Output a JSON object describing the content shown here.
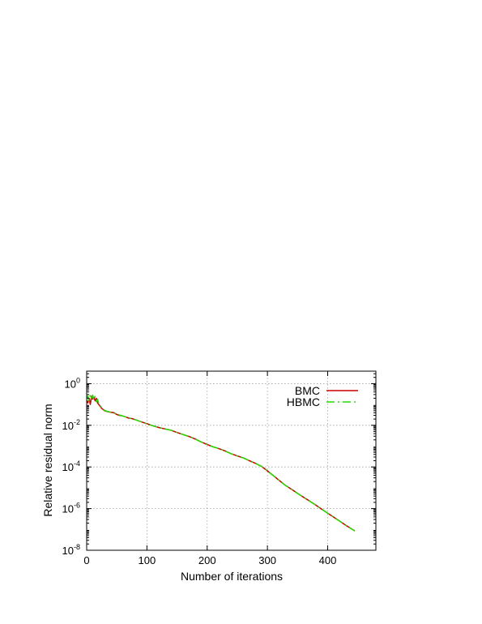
{
  "chart_data": {
    "type": "line",
    "title": "",
    "xlabel": "Number of iterations",
    "ylabel": "Relative residual norm",
    "xlim": [
      0,
      480
    ],
    "ylim_exponent": [
      -8,
      0.6
    ],
    "y_scale": "log",
    "grid": true,
    "legend_position": "top-right",
    "x_ticks": [
      "0",
      "100",
      "200",
      "300",
      "400"
    ],
    "x_tick_values": [
      0,
      100,
      200,
      300,
      400
    ],
    "y_ticks": [
      {
        "base": "10",
        "exp": "0",
        "value": 1
      },
      {
        "base": "10",
        "exp": "-2",
        "value": 0.01
      },
      {
        "base": "10",
        "exp": "-4",
        "value": 0.0001
      },
      {
        "base": "10",
        "exp": "-6",
        "value": 1e-06
      },
      {
        "base": "10",
        "exp": "-8",
        "value": 1e-08
      }
    ],
    "series": [
      {
        "name": "BMC",
        "color": "#cc0000",
        "dash": "solid",
        "x": [
          0,
          2,
          4,
          6,
          8,
          10,
          12,
          14,
          16,
          18,
          20,
          25,
          30,
          35,
          40,
          45,
          50,
          55,
          60,
          65,
          70,
          75,
          80,
          90,
          100,
          110,
          120,
          130,
          140,
          150,
          160,
          170,
          180,
          190,
          200,
          210,
          220,
          230,
          240,
          250,
          260,
          270,
          280,
          290,
          300,
          310,
          320,
          330,
          340,
          350,
          360,
          370,
          380,
          390,
          400,
          410,
          420,
          430,
          440,
          445
        ],
        "y": [
          0.15,
          0.12,
          0.2,
          0.1,
          0.25,
          0.18,
          0.22,
          0.15,
          0.2,
          0.12,
          0.1,
          0.065,
          0.05,
          0.045,
          0.042,
          0.04,
          0.033,
          0.03,
          0.028,
          0.025,
          0.022,
          0.021,
          0.019,
          0.015,
          0.012,
          0.0095,
          0.0078,
          0.0067,
          0.0058,
          0.0045,
          0.0036,
          0.0029,
          0.0022,
          0.0016,
          0.0012,
          0.00092,
          0.00075,
          0.00058,
          0.00043,
          0.00034,
          0.00027,
          0.0002,
          0.00015,
          0.000108,
          6.5e-05,
          3.8e-05,
          2.2e-05,
          1.3e-05,
          8.5e-06,
          5.4e-06,
          3.5e-06,
          2.3e-06,
          1.5e-06,
          9.5e-07,
          6e-07,
          3.9e-07,
          2.5e-07,
          1.6e-07,
          1.05e-07,
          8.5e-08
        ]
      },
      {
        "name": "HBMC",
        "color": "#22dd00",
        "dash": "dash-dot",
        "x": [
          0,
          2,
          4,
          6,
          8,
          10,
          12,
          14,
          16,
          18,
          20,
          25,
          30,
          35,
          40,
          45,
          50,
          55,
          60,
          65,
          70,
          75,
          80,
          90,
          100,
          110,
          120,
          130,
          140,
          150,
          160,
          170,
          180,
          190,
          200,
          210,
          220,
          230,
          240,
          250,
          260,
          270,
          280,
          290,
          300,
          310,
          320,
          330,
          340,
          350,
          360,
          370,
          380,
          390,
          400,
          410,
          420,
          430,
          440,
          445
        ],
        "y": [
          0.2,
          0.25,
          0.15,
          0.3,
          0.2,
          0.28,
          0.17,
          0.24,
          0.14,
          0.18,
          0.11,
          0.07,
          0.052,
          0.046,
          0.043,
          0.041,
          0.034,
          0.031,
          0.028,
          0.025,
          0.022,
          0.021,
          0.019,
          0.015,
          0.012,
          0.0095,
          0.0078,
          0.0067,
          0.0058,
          0.0045,
          0.0036,
          0.0029,
          0.0022,
          0.0016,
          0.0012,
          0.00092,
          0.00075,
          0.00058,
          0.00043,
          0.00034,
          0.00027,
          0.0002,
          0.00015,
          0.000108,
          6.5e-05,
          3.8e-05,
          2.2e-05,
          1.3e-05,
          8.5e-06,
          5.4e-06,
          3.5e-06,
          2.3e-06,
          1.5e-06,
          9.5e-07,
          6e-07,
          3.9e-07,
          2.5e-07,
          1.6e-07,
          1.05e-07,
          8.5e-08
        ]
      }
    ]
  }
}
